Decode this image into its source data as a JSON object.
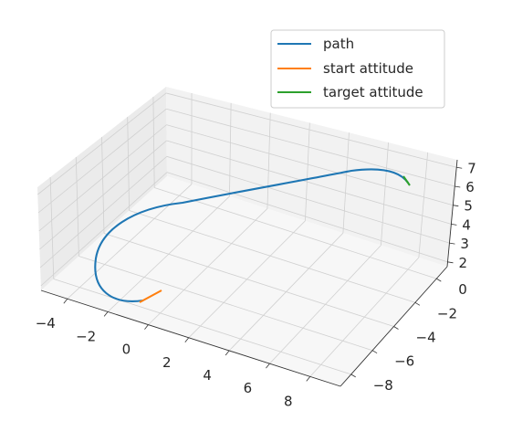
{
  "chart_data": {
    "type": "line3d",
    "title": "",
    "xlabel": "",
    "ylabel": "",
    "zlabel": "",
    "grid": true,
    "legend_position": "top-right",
    "axes": {
      "x": {
        "ticks": [
          -4,
          -2,
          0,
          2,
          4,
          6,
          8
        ],
        "tick_labels": [
          "−4",
          "−2",
          "0",
          "2",
          "4",
          "6",
          "8"
        ]
      },
      "y": {
        "ticks": [
          0,
          -2,
          -4,
          -6,
          -8
        ],
        "tick_labels": [
          "0",
          "−2",
          "−4",
          "−6",
          "−8"
        ]
      },
      "z": {
        "ticks": [
          2,
          3,
          4,
          5,
          6,
          7
        ],
        "tick_labels": [
          "2",
          "3",
          "4",
          "5",
          "6",
          "7"
        ]
      }
    },
    "series": [
      {
        "name": "path",
        "color": "#1f77b4"
      },
      {
        "name": "start attitude",
        "color": "#ff7f0e"
      },
      {
        "name": "target attitude",
        "color": "#2ca02c"
      }
    ],
    "colors": {
      "pane_left": "#ebebeb",
      "pane_back": "#f2f2f2",
      "pane_floor": "#f7f7f7",
      "grid": "#d0d0d0",
      "axis": "#333333"
    }
  }
}
